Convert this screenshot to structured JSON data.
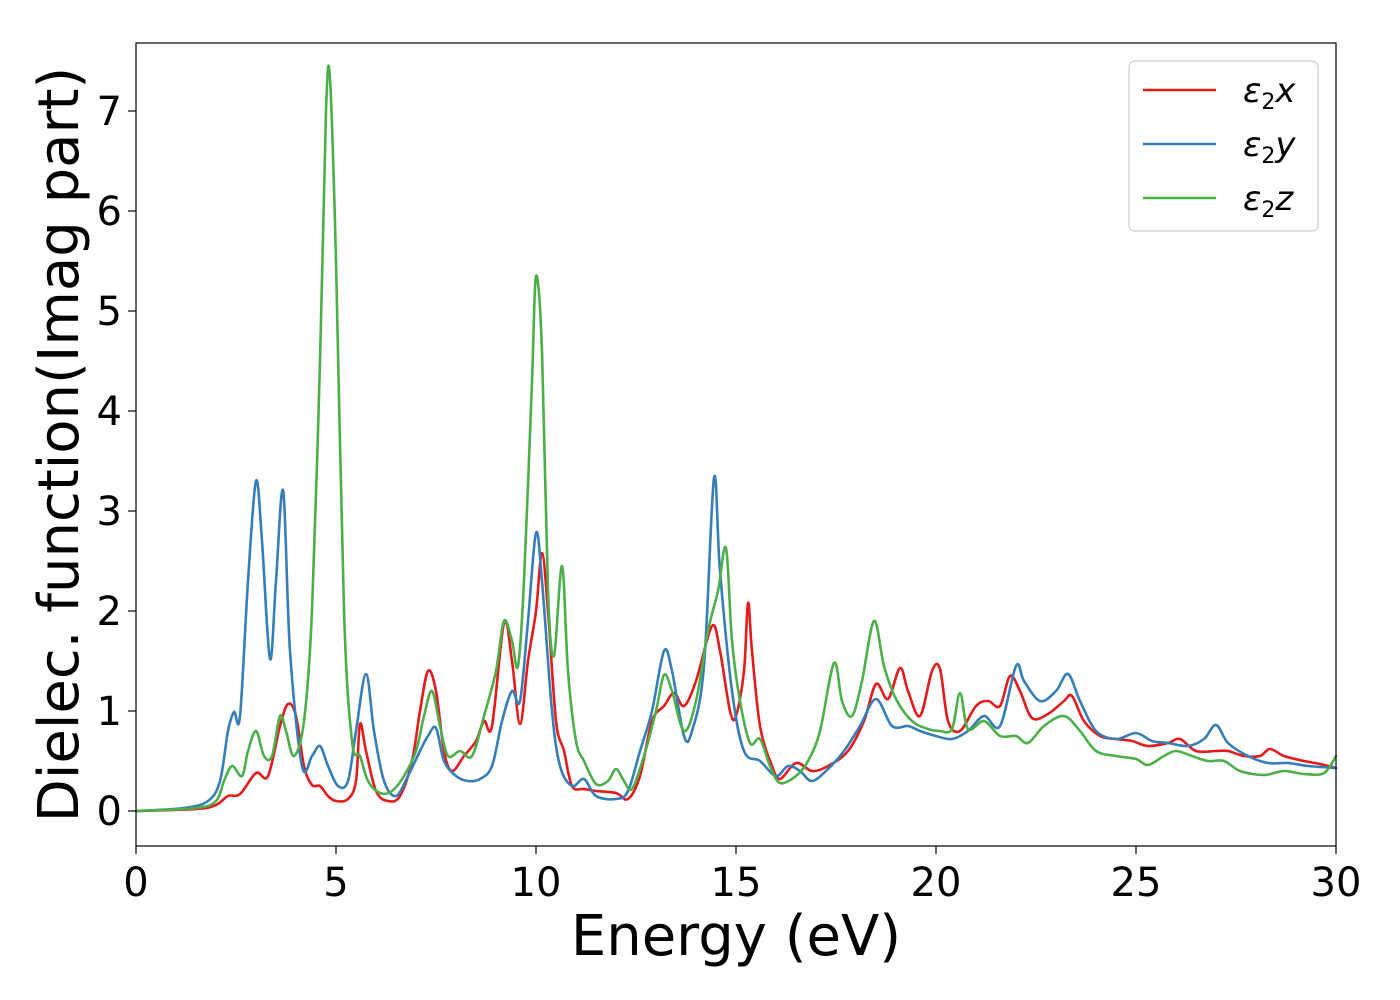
{
  "chart_data": {
    "type": "line",
    "xlabel": "Energy (eV)",
    "ylabel": "Dielec. function(Imag part)",
    "xlim": [
      0,
      30
    ],
    "ylim": [
      -0.35,
      7.68
    ],
    "xticks": [
      0,
      5,
      10,
      15,
      20,
      25,
      30
    ],
    "yticks": [
      0,
      1,
      2,
      3,
      4,
      5,
      6,
      7
    ],
    "grid": false,
    "legend_position": "top-right",
    "series": [
      {
        "name": "ε2x",
        "legend": {
          "base": "ε",
          "sub": "2",
          "tail": "x"
        },
        "color": "#e41a1c",
        "points": [
          [
            0,
            0
          ],
          [
            1.5,
            0.02
          ],
          [
            2.0,
            0.06
          ],
          [
            2.3,
            0.15
          ],
          [
            2.6,
            0.17
          ],
          [
            3.0,
            0.38
          ],
          [
            3.3,
            0.35
          ],
          [
            3.6,
            0.85
          ],
          [
            3.8,
            1.07
          ],
          [
            4.0,
            0.95
          ],
          [
            4.2,
            0.45
          ],
          [
            4.4,
            0.26
          ],
          [
            4.6,
            0.25
          ],
          [
            4.8,
            0.15
          ],
          [
            5.0,
            0.1
          ],
          [
            5.3,
            0.12
          ],
          [
            5.5,
            0.3
          ],
          [
            5.6,
            0.87
          ],
          [
            5.75,
            0.6
          ],
          [
            6.0,
            0.2
          ],
          [
            6.3,
            0.1
          ],
          [
            6.6,
            0.15
          ],
          [
            6.9,
            0.5
          ],
          [
            7.1,
            1.0
          ],
          [
            7.3,
            1.4
          ],
          [
            7.5,
            1.2
          ],
          [
            7.7,
            0.6
          ],
          [
            7.9,
            0.4
          ],
          [
            8.2,
            0.55
          ],
          [
            8.5,
            0.7
          ],
          [
            8.7,
            0.9
          ],
          [
            8.9,
            0.85
          ],
          [
            9.2,
            1.88
          ],
          [
            9.4,
            1.5
          ],
          [
            9.6,
            0.87
          ],
          [
            9.8,
            1.5
          ],
          [
            10.0,
            2.0
          ],
          [
            10.15,
            2.58
          ],
          [
            10.3,
            2.0
          ],
          [
            10.5,
            0.9
          ],
          [
            10.7,
            0.6
          ],
          [
            10.9,
            0.25
          ],
          [
            11.2,
            0.22
          ],
          [
            11.5,
            0.2
          ],
          [
            12.0,
            0.18
          ],
          [
            12.3,
            0.12
          ],
          [
            12.6,
            0.35
          ],
          [
            12.9,
            0.9
          ],
          [
            13.2,
            1.05
          ],
          [
            13.45,
            1.18
          ],
          [
            13.7,
            1.05
          ],
          [
            14.0,
            1.3
          ],
          [
            14.4,
            1.85
          ],
          [
            14.6,
            1.6
          ],
          [
            14.85,
            1.0
          ],
          [
            15.0,
            0.95
          ],
          [
            15.2,
            1.4
          ],
          [
            15.3,
            2.08
          ],
          [
            15.4,
            1.6
          ],
          [
            15.6,
            0.85
          ],
          [
            15.9,
            0.45
          ],
          [
            16.1,
            0.32
          ],
          [
            16.5,
            0.48
          ],
          [
            16.9,
            0.4
          ],
          [
            17.3,
            0.45
          ],
          [
            17.8,
            0.6
          ],
          [
            18.2,
            0.9
          ],
          [
            18.5,
            1.27
          ],
          [
            18.8,
            1.12
          ],
          [
            19.1,
            1.43
          ],
          [
            19.3,
            1.2
          ],
          [
            19.6,
            0.95
          ],
          [
            19.9,
            1.4
          ],
          [
            20.1,
            1.42
          ],
          [
            20.3,
            0.9
          ],
          [
            20.6,
            0.8
          ],
          [
            21.0,
            1.05
          ],
          [
            21.3,
            1.1
          ],
          [
            21.6,
            1.05
          ],
          [
            21.85,
            1.35
          ],
          [
            22.1,
            1.2
          ],
          [
            22.4,
            0.93
          ],
          [
            22.8,
            0.97
          ],
          [
            23.2,
            1.1
          ],
          [
            23.4,
            1.15
          ],
          [
            23.7,
            0.9
          ],
          [
            24.1,
            0.75
          ],
          [
            24.5,
            0.72
          ],
          [
            24.9,
            0.7
          ],
          [
            25.3,
            0.65
          ],
          [
            25.8,
            0.68
          ],
          [
            26.1,
            0.72
          ],
          [
            26.5,
            0.6
          ],
          [
            27.0,
            0.6
          ],
          [
            27.3,
            0.6
          ],
          [
            27.7,
            0.55
          ],
          [
            28.1,
            0.55
          ],
          [
            28.35,
            0.62
          ],
          [
            28.7,
            0.55
          ],
          [
            29.2,
            0.5
          ],
          [
            29.6,
            0.47
          ],
          [
            30,
            0.43
          ]
        ]
      },
      {
        "name": "ε2y",
        "legend": {
          "base": "ε",
          "sub": "2",
          "tail": "y"
        },
        "color": "#377eb8",
        "points": [
          [
            0,
            0
          ],
          [
            1.2,
            0.03
          ],
          [
            1.8,
            0.1
          ],
          [
            2.1,
            0.3
          ],
          [
            2.3,
            0.8
          ],
          [
            2.45,
            0.99
          ],
          [
            2.6,
            0.95
          ],
          [
            2.8,
            2.3
          ],
          [
            3.0,
            3.3
          ],
          [
            3.15,
            2.7
          ],
          [
            3.35,
            1.52
          ],
          [
            3.5,
            2.3
          ],
          [
            3.68,
            3.2
          ],
          [
            3.85,
            1.6
          ],
          [
            4.15,
            0.45
          ],
          [
            4.4,
            0.55
          ],
          [
            4.6,
            0.65
          ],
          [
            4.8,
            0.45
          ],
          [
            5.05,
            0.25
          ],
          [
            5.3,
            0.3
          ],
          [
            5.5,
            0.8
          ],
          [
            5.75,
            1.37
          ],
          [
            5.95,
            0.8
          ],
          [
            6.2,
            0.3
          ],
          [
            6.5,
            0.15
          ],
          [
            6.8,
            0.35
          ],
          [
            7.1,
            0.6
          ],
          [
            7.3,
            0.75
          ],
          [
            7.5,
            0.83
          ],
          [
            7.7,
            0.5
          ],
          [
            8.0,
            0.35
          ],
          [
            8.3,
            0.3
          ],
          [
            8.6,
            0.32
          ],
          [
            8.9,
            0.45
          ],
          [
            9.15,
            0.9
          ],
          [
            9.4,
            1.2
          ],
          [
            9.6,
            1.1
          ],
          [
            9.8,
            1.9
          ],
          [
            10.0,
            2.78
          ],
          [
            10.15,
            2.3
          ],
          [
            10.4,
            1.0
          ],
          [
            10.6,
            0.45
          ],
          [
            10.9,
            0.25
          ],
          [
            11.2,
            0.32
          ],
          [
            11.5,
            0.15
          ],
          [
            12.0,
            0.12
          ],
          [
            12.3,
            0.2
          ],
          [
            12.6,
            0.6
          ],
          [
            12.9,
            1.0
          ],
          [
            13.2,
            1.6
          ],
          [
            13.4,
            1.4
          ],
          [
            13.7,
            0.75
          ],
          [
            13.9,
            0.8
          ],
          [
            14.2,
            1.45
          ],
          [
            14.45,
            3.33
          ],
          [
            14.6,
            2.4
          ],
          [
            14.9,
            1.2
          ],
          [
            15.2,
            0.6
          ],
          [
            15.6,
            0.5
          ],
          [
            16.0,
            0.35
          ],
          [
            16.3,
            0.45
          ],
          [
            16.6,
            0.4
          ],
          [
            16.9,
            0.3
          ],
          [
            17.3,
            0.42
          ],
          [
            17.7,
            0.6
          ],
          [
            18.1,
            0.85
          ],
          [
            18.5,
            1.12
          ],
          [
            18.9,
            0.85
          ],
          [
            19.3,
            0.85
          ],
          [
            19.6,
            0.8
          ],
          [
            20.0,
            0.75
          ],
          [
            20.4,
            0.72
          ],
          [
            20.8,
            0.8
          ],
          [
            21.2,
            0.95
          ],
          [
            21.6,
            0.85
          ],
          [
            22.0,
            1.45
          ],
          [
            22.2,
            1.3
          ],
          [
            22.6,
            1.1
          ],
          [
            23.0,
            1.2
          ],
          [
            23.3,
            1.37
          ],
          [
            23.6,
            1.1
          ],
          [
            24.0,
            0.8
          ],
          [
            24.5,
            0.72
          ],
          [
            25.0,
            0.78
          ],
          [
            25.4,
            0.7
          ],
          [
            25.8,
            0.68
          ],
          [
            26.3,
            0.65
          ],
          [
            26.7,
            0.72
          ],
          [
            27.0,
            0.86
          ],
          [
            27.3,
            0.68
          ],
          [
            27.8,
            0.55
          ],
          [
            28.3,
            0.48
          ],
          [
            28.8,
            0.48
          ],
          [
            29.3,
            0.45
          ],
          [
            30,
            0.43
          ]
        ]
      },
      {
        "name": "ε2z",
        "legend": {
          "base": "ε",
          "sub": "2",
          "tail": "z"
        },
        "color": "#4daf4a",
        "points": [
          [
            0,
            0
          ],
          [
            1.5,
            0.03
          ],
          [
            2.0,
            0.1
          ],
          [
            2.2,
            0.3
          ],
          [
            2.4,
            0.45
          ],
          [
            2.65,
            0.35
          ],
          [
            2.8,
            0.6
          ],
          [
            3.0,
            0.8
          ],
          [
            3.2,
            0.55
          ],
          [
            3.4,
            0.55
          ],
          [
            3.6,
            0.95
          ],
          [
            3.75,
            0.8
          ],
          [
            3.95,
            0.55
          ],
          [
            4.2,
            0.9
          ],
          [
            4.4,
            2.0
          ],
          [
            4.6,
            4.5
          ],
          [
            4.75,
            7.0
          ],
          [
            4.85,
            7.32
          ],
          [
            5.0,
            5.5
          ],
          [
            5.2,
            2.0
          ],
          [
            5.4,
            0.7
          ],
          [
            5.6,
            0.55
          ],
          [
            5.8,
            0.3
          ],
          [
            6.1,
            0.18
          ],
          [
            6.4,
            0.2
          ],
          [
            6.7,
            0.35
          ],
          [
            7.0,
            0.6
          ],
          [
            7.2,
            0.95
          ],
          [
            7.4,
            1.2
          ],
          [
            7.6,
            0.85
          ],
          [
            7.8,
            0.55
          ],
          [
            8.1,
            0.6
          ],
          [
            8.4,
            0.55
          ],
          [
            8.7,
            0.95
          ],
          [
            9.0,
            1.4
          ],
          [
            9.2,
            1.9
          ],
          [
            9.4,
            1.7
          ],
          [
            9.55,
            1.45
          ],
          [
            9.7,
            2.3
          ],
          [
            9.9,
            4.3
          ],
          [
            10.0,
            5.35
          ],
          [
            10.15,
            4.6
          ],
          [
            10.3,
            2.2
          ],
          [
            10.45,
            1.55
          ],
          [
            10.65,
            2.45
          ],
          [
            10.8,
            1.4
          ],
          [
            11.0,
            0.7
          ],
          [
            11.2,
            0.5
          ],
          [
            11.5,
            0.27
          ],
          [
            11.8,
            0.3
          ],
          [
            12.0,
            0.42
          ],
          [
            12.2,
            0.3
          ],
          [
            12.4,
            0.22
          ],
          [
            12.7,
            0.55
          ],
          [
            13.0,
            1.0
          ],
          [
            13.2,
            1.36
          ],
          [
            13.4,
            1.2
          ],
          [
            13.7,
            0.8
          ],
          [
            14.0,
            1.1
          ],
          [
            14.3,
            1.8
          ],
          [
            14.55,
            2.2
          ],
          [
            14.75,
            2.63
          ],
          [
            14.9,
            1.7
          ],
          [
            15.1,
            1.1
          ],
          [
            15.35,
            0.68
          ],
          [
            15.6,
            0.72
          ],
          [
            15.85,
            0.45
          ],
          [
            16.1,
            0.28
          ],
          [
            16.5,
            0.35
          ],
          [
            16.8,
            0.5
          ],
          [
            17.1,
            0.8
          ],
          [
            17.45,
            1.48
          ],
          [
            17.65,
            1.1
          ],
          [
            17.9,
            0.95
          ],
          [
            18.15,
            1.3
          ],
          [
            18.45,
            1.9
          ],
          [
            18.7,
            1.45
          ],
          [
            19.0,
            1.12
          ],
          [
            19.4,
            0.9
          ],
          [
            19.8,
            0.82
          ],
          [
            20.1,
            0.8
          ],
          [
            20.4,
            0.82
          ],
          [
            20.6,
            1.18
          ],
          [
            20.8,
            0.82
          ],
          [
            21.2,
            0.9
          ],
          [
            21.6,
            0.75
          ],
          [
            22.0,
            0.75
          ],
          [
            22.3,
            0.68
          ],
          [
            22.7,
            0.85
          ],
          [
            23.2,
            0.95
          ],
          [
            23.6,
            0.8
          ],
          [
            24.0,
            0.6
          ],
          [
            24.5,
            0.55
          ],
          [
            25.0,
            0.52
          ],
          [
            25.3,
            0.46
          ],
          [
            25.7,
            0.55
          ],
          [
            26.0,
            0.6
          ],
          [
            26.4,
            0.55
          ],
          [
            26.8,
            0.5
          ],
          [
            27.2,
            0.5
          ],
          [
            27.6,
            0.4
          ],
          [
            28.2,
            0.36
          ],
          [
            28.7,
            0.4
          ],
          [
            29.2,
            0.37
          ],
          [
            29.7,
            0.38
          ],
          [
            30,
            0.55
          ]
        ]
      }
    ]
  }
}
